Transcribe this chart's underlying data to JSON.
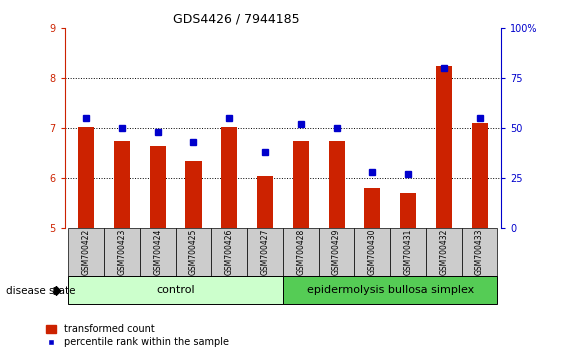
{
  "title": "GDS4426 / 7944185",
  "samples": [
    "GSM700422",
    "GSM700423",
    "GSM700424",
    "GSM700425",
    "GSM700426",
    "GSM700427",
    "GSM700428",
    "GSM700429",
    "GSM700430",
    "GSM700431",
    "GSM700432",
    "GSM700433"
  ],
  "transformed_count": [
    7.02,
    6.75,
    6.65,
    6.35,
    7.02,
    6.05,
    6.75,
    6.75,
    5.8,
    5.7,
    8.25,
    7.1
  ],
  "percentile_rank": [
    55,
    50,
    48,
    43,
    55,
    38,
    52,
    50,
    28,
    27,
    80,
    55
  ],
  "bar_color": "#cc2200",
  "square_color": "#0000cc",
  "ylim_left": [
    5,
    9
  ],
  "ylim_right": [
    0,
    100
  ],
  "yticks_left": [
    5,
    6,
    7,
    8,
    9
  ],
  "yticks_right": [
    0,
    25,
    50,
    75,
    100
  ],
  "ytick_labels_right": [
    "0",
    "25",
    "50",
    "75",
    "100%"
  ],
  "control_samples": 6,
  "control_label": "control",
  "disease_label": "epidermolysis bullosa simplex",
  "disease_state_label": "disease state",
  "legend_bar_label": "transformed count",
  "legend_square_label": "percentile rank within the sample",
  "control_bg": "#ccffcc",
  "disease_bg": "#55cc55",
  "sample_bg": "#cccccc",
  "background_color": "#ffffff",
  "bar_width": 0.45
}
